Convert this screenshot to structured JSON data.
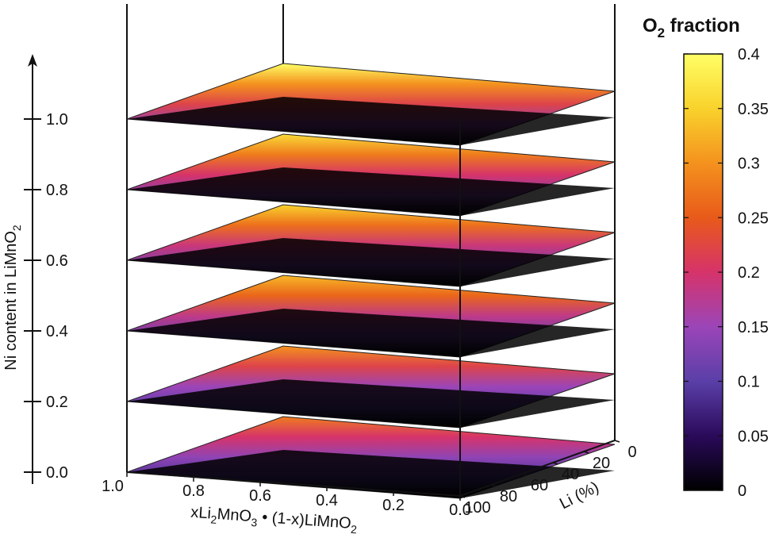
{
  "chart_data": {
    "type": "heatmap",
    "title": "",
    "colorbar": {
      "title_main": "O",
      "title_sub": "2",
      "title_rest": " fraction",
      "range": [
        0,
        0.4
      ],
      "ticks": [
        "0",
        "0.05",
        "0.1",
        "0.15",
        "0.2",
        "0.25",
        "0.3",
        "0.35",
        "0.4"
      ],
      "palette": [
        "#000000",
        "#2a0a5a",
        "#5a3fa8",
        "#9b45b8",
        "#d6336a",
        "#e85a1a",
        "#f4921e",
        "#f9d22c",
        "#ffff66"
      ]
    },
    "z_axis": {
      "label_main": "Ni content in LiMnO",
      "label_sub": "2",
      "ticks": [
        "1.0",
        "0.8",
        "0.6",
        "0.4",
        "0.2",
        "0.0"
      ]
    },
    "x_axis": {
      "label_a": "xLi",
      "label_a_sub": "2",
      "label_b": "MnO",
      "label_b_sub": "3",
      "label_c": " • (1-x)LiMnO",
      "label_c_sub": "2",
      "ticks": [
        "1.0",
        "0.8",
        "0.6",
        "0.4",
        "0.2",
        "0.0"
      ]
    },
    "y_axis": {
      "label": "Li (%)",
      "ticks": [
        "0",
        "20",
        "40",
        "60",
        "80",
        "100"
      ]
    },
    "slices": [
      {
        "ni": 1.0,
        "stops": [
          0.4,
          0.3,
          0.22,
          0.14,
          0.0
        ]
      },
      {
        "ni": 0.8,
        "stops": [
          0.36,
          0.28,
          0.2,
          0.13,
          0.0
        ]
      },
      {
        "ni": 0.6,
        "stops": [
          0.35,
          0.27,
          0.19,
          0.12,
          0.0
        ]
      },
      {
        "ni": 0.4,
        "stops": [
          0.33,
          0.26,
          0.18,
          0.11,
          0.0
        ]
      },
      {
        "ni": 0.2,
        "stops": [
          0.3,
          0.22,
          0.15,
          0.1,
          0.0
        ]
      },
      {
        "ni": 0.0,
        "stops": [
          0.28,
          0.2,
          0.14,
          0.09,
          0.0
        ]
      }
    ]
  }
}
